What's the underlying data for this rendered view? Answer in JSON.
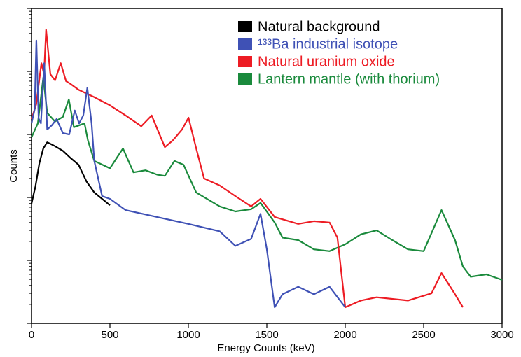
{
  "chart_data": {
    "type": "line",
    "xlabel": "Energy Counts (keV)",
    "ylabel": "Counts",
    "xlim": [
      0,
      3000
    ],
    "xticks": [
      0,
      500,
      1000,
      1500,
      2000,
      2500,
      3000
    ],
    "ylim": [
      1,
      100000
    ],
    "yticks": [
      1,
      10,
      100,
      1000,
      10000,
      100000
    ],
    "ylog": true,
    "legend": "top-right",
    "series": [
      {
        "name": "Natural background",
        "color": "#000000",
        "x": [
          0,
          25,
          50,
          75,
          100,
          125,
          150,
          200,
          250,
          300,
          350,
          400,
          450,
          500
        ],
        "values": [
          80,
          150,
          350,
          600,
          750,
          700,
          650,
          550,
          420,
          330,
          180,
          120,
          95,
          75
        ]
      },
      {
        "name": "¹³³Ba industrial isotope",
        "color": "#3f51b5",
        "x": [
          0,
          20,
          31,
          45,
          60,
          81,
          100,
          130,
          160,
          200,
          240,
          276,
          303,
          330,
          356,
          383,
          400,
          450,
          500,
          600,
          800,
          1000,
          1200,
          1300,
          1400,
          1460,
          1500,
          1550,
          1600,
          1700,
          1800,
          1900,
          2000
        ],
        "values": [
          1500,
          2500,
          31000,
          1800,
          1500,
          13500,
          1200,
          1400,
          1750,
          1050,
          1000,
          2400,
          1500,
          2000,
          5500,
          1500,
          380,
          105,
          95,
          63,
          49,
          38,
          29,
          17,
          22,
          55,
          15,
          1.8,
          2.9,
          3.8,
          2.9,
          3.8,
          1.8
        ]
      },
      {
        "name": "Natural uranium oxide",
        "color": "#ed1c24",
        "x": [
          0,
          30,
          63,
          80,
          93,
          120,
          150,
          186,
          220,
          250,
          300,
          400,
          500,
          600,
          700,
          766,
          850,
          900,
          960,
          1001,
          1050,
          1100,
          1200,
          1300,
          1400,
          1460,
          1550,
          1700,
          1800,
          1900,
          1950,
          2000,
          2100,
          2200,
          2400,
          2550,
          2614,
          2700,
          2750
        ],
        "values": [
          1750,
          3000,
          13500,
          9000,
          46000,
          9000,
          7200,
          13500,
          7000,
          6300,
          5100,
          3900,
          2900,
          2000,
          1350,
          2000,
          630,
          800,
          1200,
          1850,
          600,
          200,
          155,
          105,
          72,
          95,
          49,
          38,
          42,
          40,
          23,
          1.8,
          2.3,
          2.6,
          2.3,
          3,
          6.3,
          2.9,
          1.8
        ]
      },
      {
        "name": "Lantern mantle (with thorium)",
        "color": "#1a8a3c",
        "x": [
          0,
          40,
          75,
          100,
          150,
          200,
          238,
          270,
          338,
          360,
          400,
          500,
          583,
          650,
          727,
          800,
          850,
          911,
          969,
          1050,
          1200,
          1300,
          1400,
          1460,
          1550,
          1600,
          1700,
          1800,
          1900,
          2000,
          2100,
          2200,
          2300,
          2400,
          2500,
          2614,
          2700,
          2750,
          2800,
          2900,
          3000
        ],
        "values": [
          900,
          1500,
          8000,
          2200,
          1600,
          1900,
          3600,
          1300,
          1500,
          800,
          380,
          290,
          600,
          250,
          270,
          230,
          220,
          380,
          330,
          120,
          72,
          60,
          65,
          82,
          40,
          23,
          21,
          15,
          14,
          18,
          26,
          30,
          21,
          15,
          14,
          63,
          21,
          8,
          5.5,
          6,
          4.9
        ]
      }
    ]
  }
}
